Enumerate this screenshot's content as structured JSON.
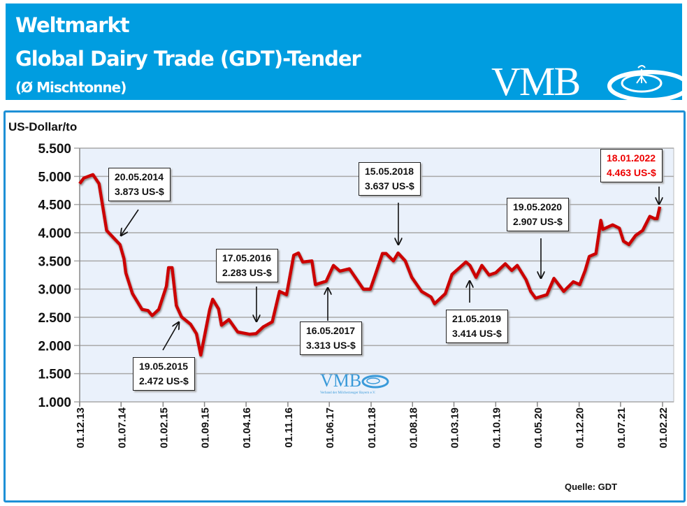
{
  "header": {
    "title_line1": "Weltmarkt",
    "title_line2": "Global Dairy Trade (GDT)-Tender",
    "title_line3": "(Ø Mischtonne)",
    "logo_text": "VMB",
    "background_color": "#009de0"
  },
  "watermark": {
    "logo_text": "VMB",
    "subtitle": "Verband der Milcherzeuger Bayern e.V."
  },
  "source": "Quelle: GDT",
  "chart_data": {
    "type": "line",
    "ylabel": "US-Dollar/to",
    "ylim": [
      1000,
      5500
    ],
    "yticks": [
      "1.000",
      "1.500",
      "2.000",
      "2.500",
      "3.000",
      "3.500",
      "4.000",
      "4.500",
      "5.000",
      "5.500"
    ],
    "ytick_values": [
      1000,
      1500,
      2000,
      2500,
      3000,
      3500,
      4000,
      4500,
      5000,
      5500
    ],
    "xlim": [
      "2013-12-01",
      "2022-04-01"
    ],
    "xticks": [
      "01.12.13",
      "01.07.14",
      "01.02.15",
      "01.09.15",
      "01.04.16",
      "01.11.16",
      "01.06.17",
      "01.01.18",
      "01.08.18",
      "01.03.19",
      "01.10.19",
      "01.05.20",
      "01.12.20",
      "01.07.21",
      "01.02.22"
    ],
    "xtick_dates": [
      "2013-12-01",
      "2014-07-01",
      "2015-02-01",
      "2015-09-01",
      "2016-04-01",
      "2016-11-01",
      "2017-06-01",
      "2018-01-01",
      "2018-08-01",
      "2019-03-01",
      "2019-10-01",
      "2020-05-01",
      "2020-12-01",
      "2021-07-01",
      "2022-02-01"
    ],
    "grid": true,
    "line_color": "#cc0000",
    "plot_background": "#eaf1fb",
    "series": [
      {
        "points": [
          [
            "2013-12-01",
            4870
          ],
          [
            "2013-12-22",
            4970
          ],
          [
            "2014-02-07",
            5030
          ],
          [
            "2014-03-10",
            4870
          ],
          [
            "2014-04-18",
            4040
          ],
          [
            "2014-06-25",
            3790
          ],
          [
            "2014-07-16",
            3540
          ],
          [
            "2014-07-25",
            3290
          ],
          [
            "2014-08-28",
            2920
          ],
          [
            "2014-10-16",
            2640
          ],
          [
            "2014-11-16",
            2620
          ],
          [
            "2014-12-07",
            2530
          ],
          [
            "2015-01-10",
            2640
          ],
          [
            "2015-02-18",
            3050
          ],
          [
            "2015-03-01",
            3380
          ],
          [
            "2015-03-19",
            3380
          ],
          [
            "2015-04-10",
            2710
          ],
          [
            "2015-05-06",
            2510
          ],
          [
            "2015-06-21",
            2380
          ],
          [
            "2015-07-22",
            2210
          ],
          [
            "2015-08-13",
            1830
          ],
          [
            "2015-09-28",
            2640
          ],
          [
            "2015-10-13",
            2820
          ],
          [
            "2015-11-12",
            2650
          ],
          [
            "2015-11-27",
            2360
          ],
          [
            "2016-01-04",
            2460
          ],
          [
            "2016-02-18",
            2240
          ],
          [
            "2016-04-18",
            2200
          ],
          [
            "2016-05-22",
            2210
          ],
          [
            "2016-06-28",
            2330
          ],
          [
            "2016-08-13",
            2420
          ],
          [
            "2016-09-19",
            2960
          ],
          [
            "2016-10-25",
            2900
          ],
          [
            "2016-12-01",
            3600
          ],
          [
            "2016-12-25",
            3640
          ],
          [
            "2017-01-16",
            3480
          ],
          [
            "2017-03-04",
            3500
          ],
          [
            "2017-03-22",
            3080
          ],
          [
            "2017-05-16",
            3140
          ],
          [
            "2017-06-22",
            3420
          ],
          [
            "2017-07-25",
            3320
          ],
          [
            "2017-09-12",
            3360
          ],
          [
            "2017-11-22",
            3000
          ],
          [
            "2017-12-28",
            3000
          ],
          [
            "2018-01-22",
            3250
          ],
          [
            "2018-02-28",
            3630
          ],
          [
            "2018-03-19",
            3630
          ],
          [
            "2018-04-25",
            3500
          ],
          [
            "2018-05-19",
            3640
          ],
          [
            "2018-06-25",
            3500
          ],
          [
            "2018-07-28",
            3210
          ],
          [
            "2018-09-16",
            2960
          ],
          [
            "2018-11-04",
            2860
          ],
          [
            "2018-11-22",
            2740
          ],
          [
            "2019-01-16",
            2920
          ],
          [
            "2019-02-19",
            3260
          ],
          [
            "2019-05-01",
            3480
          ],
          [
            "2019-05-22",
            3420
          ],
          [
            "2019-06-22",
            3210
          ],
          [
            "2019-07-22",
            3420
          ],
          [
            "2019-08-28",
            3250
          ],
          [
            "2019-10-01",
            3290
          ],
          [
            "2019-11-19",
            3450
          ],
          [
            "2019-12-22",
            3330
          ],
          [
            "2020-01-19",
            3420
          ],
          [
            "2020-03-04",
            3170
          ],
          [
            "2020-03-28",
            2960
          ],
          [
            "2020-04-22",
            2840
          ],
          [
            "2020-06-19",
            2900
          ],
          [
            "2020-07-25",
            3190
          ],
          [
            "2020-09-13",
            2960
          ],
          [
            "2020-11-01",
            3130
          ],
          [
            "2020-12-04",
            3080
          ],
          [
            "2021-01-01",
            3330
          ],
          [
            "2021-01-22",
            3580
          ],
          [
            "2021-02-25",
            3630
          ],
          [
            "2021-03-22",
            4220
          ],
          [
            "2021-04-01",
            4060
          ],
          [
            "2021-05-22",
            4140
          ],
          [
            "2021-06-25",
            4080
          ],
          [
            "2021-07-16",
            3850
          ],
          [
            "2021-08-13",
            3790
          ],
          [
            "2021-09-16",
            3950
          ],
          [
            "2021-10-22",
            4040
          ],
          [
            "2021-11-28",
            4290
          ],
          [
            "2021-12-22",
            4250
          ],
          [
            "2022-01-04",
            4250
          ],
          [
            "2022-01-18",
            4463
          ]
        ]
      }
    ],
    "annotations": [
      {
        "date": "20.05.2014",
        "value": "3.873 US-$"
      },
      {
        "date": "19.05.2015",
        "value": "2.472 US-$"
      },
      {
        "date": "17.05.2016",
        "value": "2.283 US-$"
      },
      {
        "date": "16.05.2017",
        "value": "3.313 US-$"
      },
      {
        "date": "15.05.2018",
        "value": "3.637 US-$"
      },
      {
        "date": "21.05.2019",
        "value": "3.414 US-$"
      },
      {
        "date": "19.05.2020",
        "value": "2.907 US-$"
      },
      {
        "date": "18.01.2022",
        "value": "4.463 US-$",
        "color": "#ee0000"
      }
    ]
  }
}
